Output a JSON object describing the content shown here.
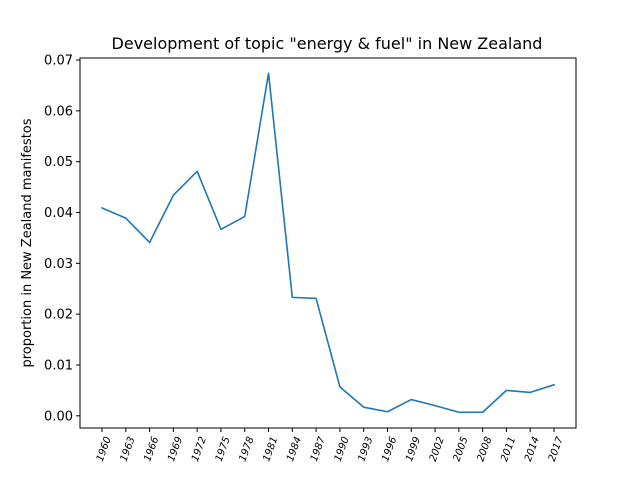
{
  "chart_data": {
    "type": "line",
    "title": "Development of topic \"energy & fuel\" in New Zealand",
    "xlabel": "",
    "ylabel": "proportion in New Zealand manifestos",
    "categories": [
      "1960",
      "1963",
      "1966",
      "1969",
      "1972",
      "1975",
      "1978",
      "1981",
      "1984",
      "1987",
      "1990",
      "1993",
      "1996",
      "1999",
      "2002",
      "2005",
      "2008",
      "2011",
      "2014",
      "2017"
    ],
    "series": [
      {
        "values": [
          0.0409,
          0.0389,
          0.0341,
          0.0434,
          0.0481,
          0.0367,
          0.0392,
          0.0674,
          0.0233,
          0.0231,
          0.0057,
          0.0017,
          0.0008,
          0.0032,
          0.002,
          0.0007,
          0.0007,
          0.005,
          0.0046,
          0.0061
        ],
        "color": "#1f77b4"
      }
    ],
    "ylim": [
      -0.0024,
      0.0704
    ],
    "yticks": [
      "0.00",
      "0.01",
      "0.02",
      "0.03",
      "0.04",
      "0.05",
      "0.06",
      "0.07"
    ],
    "ytick_values": [
      0,
      0.01,
      0.02,
      0.03,
      0.04,
      0.05,
      0.06,
      0.07
    ],
    "grid": false,
    "legend": "none"
  }
}
